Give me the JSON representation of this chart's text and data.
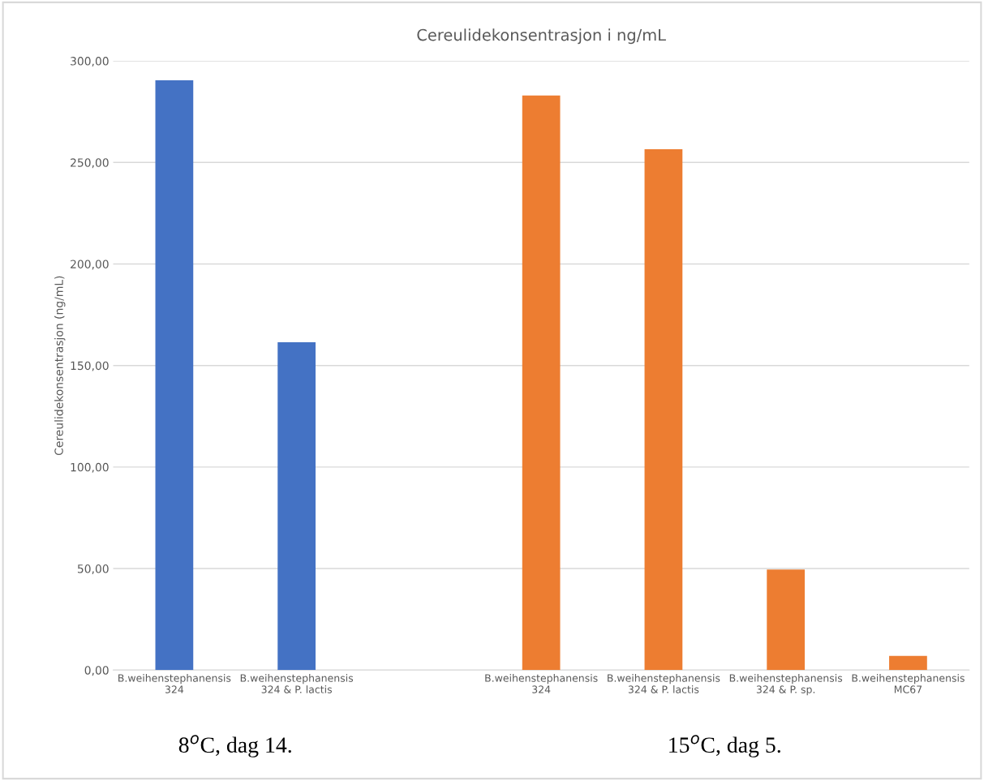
{
  "chart_data": {
    "type": "bar",
    "title": "Cereulidekonsentrasjon i ng/mL",
    "ylabel": "Cereulidekonsentrasjon (ng/mL)",
    "categories": [
      "B.weihenstephanensis\n324",
      "B.weihenstephanensis\n324 & P. lactis",
      null,
      "B.weihenstephanensis\n324",
      "B.weihenstephanensis\n324 & P. lactis",
      "B.weihenstephanensis\n324 & P. sp.",
      "B.weihenstephanensis\nMC67"
    ],
    "series": [
      {
        "color": "#4472c4",
        "values": [
          290.5,
          161.5,
          null,
          null,
          null,
          null,
          null
        ]
      },
      {
        "color": "#ed7d31",
        "values": [
          null,
          null,
          null,
          283,
          256.5,
          49.5,
          7
        ]
      }
    ],
    "ylim": [
      0,
      300
    ],
    "yticks": [
      {
        "value": 0,
        "label": "0,00"
      },
      {
        "value": 50,
        "label": "50,00"
      },
      {
        "value": 100,
        "label": "100,00"
      },
      {
        "value": 150,
        "label": "150,00"
      },
      {
        "value": 200,
        "label": "200,00"
      },
      {
        "value": 250,
        "label": "250,00"
      },
      {
        "value": 300,
        "label": "300,00"
      }
    ],
    "grid": "y",
    "annotations": [
      "8$^{o}$C, dag 14.",
      "15$^{o}$C, dag 5."
    ]
  }
}
